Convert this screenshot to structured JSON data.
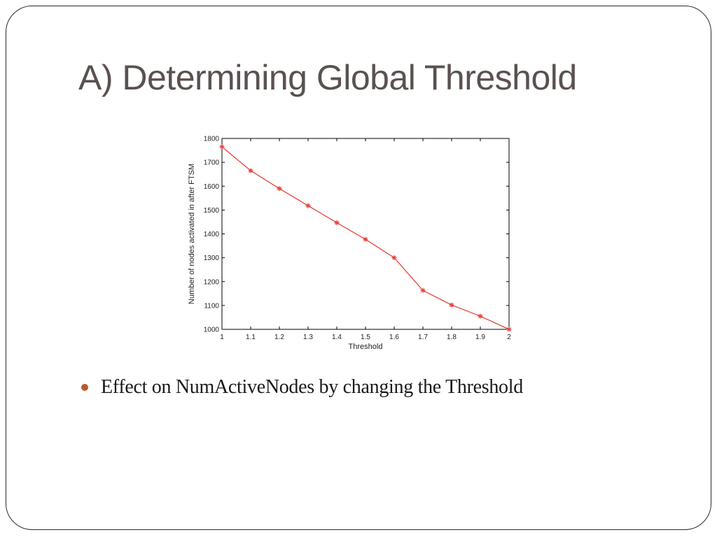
{
  "slide": {
    "title": "A) Determining Global Threshold",
    "bullet": "Effect on NumActiveNodes by changing the Threshold"
  },
  "colors": {
    "series": "#e8413c",
    "title": "#5a5250",
    "bullet": "#c0572a"
  },
  "chart_data": {
    "type": "line",
    "title": "",
    "xlabel": "Threshold",
    "ylabel": "Number of nodes activated in after FTSM",
    "xlim": [
      1,
      2
    ],
    "ylim": [
      1000,
      1800
    ],
    "xticks": [
      "1",
      "1.1",
      "1.2",
      "1.3",
      "1.4",
      "1.5",
      "1.6",
      "1.7",
      "1.8",
      "1.9",
      "2"
    ],
    "yticks": [
      "1000",
      "1100",
      "1200",
      "1300",
      "1400",
      "1500",
      "1600",
      "1700",
      "1800"
    ],
    "grid": false,
    "marker": "asterisk",
    "series": [
      {
        "x": [
          1,
          1.1,
          1.2,
          1.3,
          1.4,
          1.5,
          1.6,
          1.7,
          1.8,
          1.9,
          2
        ],
        "values": [
          1765,
          1665,
          1590,
          1518,
          1447,
          1377,
          1300,
          1163,
          1102,
          1055,
          1000
        ]
      }
    ]
  }
}
